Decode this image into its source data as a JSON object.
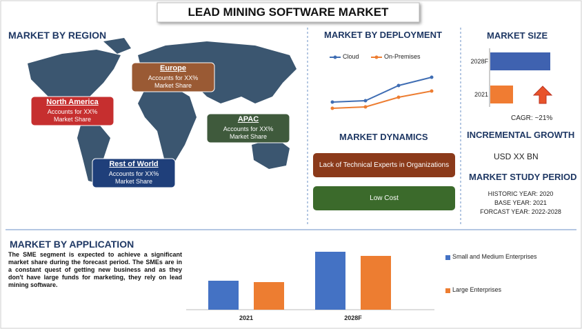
{
  "title": "LEAD MINING SOFTWARE MARKET",
  "region": {
    "heading": "MARKET BY REGION",
    "regions": [
      {
        "name": "North America",
        "lines": [
          "Accounts for XX%",
          "Market Share"
        ],
        "color": "#c62f2f"
      },
      {
        "name": "Europe",
        "lines": [
          "Accounts for XX%",
          "Market Share"
        ],
        "color": "#9a5a34"
      },
      {
        "name": "APAC",
        "lines": [
          "Accounts for XX%",
          "Market Share"
        ],
        "color": "#3f5a3c"
      },
      {
        "name": "Rest of World",
        "lines": [
          "Accounts for XX%",
          "Market Share"
        ],
        "color": "#1f3f7a"
      }
    ]
  },
  "deployment": {
    "heading": "MARKET BY DEPLOYMENT",
    "series": [
      {
        "name": "Cloud",
        "color": "#3f6db3",
        "values": [
          5.2,
          5.4,
          7.6,
          8.8
        ]
      },
      {
        "name": "On-Premises",
        "color": "#ed7d31",
        "values": [
          4.3,
          4.5,
          5.9,
          6.8
        ]
      }
    ]
  },
  "dynamics": {
    "heading": "MARKET DYNAMICS",
    "items": [
      {
        "text": "Lack of Technical Experts in Organizations",
        "color": "#8b3a1a"
      },
      {
        "text": "Low Cost",
        "color": "#3b6a2b"
      }
    ]
  },
  "size": {
    "heading": "MARKET SIZE",
    "bars": [
      {
        "label": "2028F",
        "value": 87,
        "color": "#3f62b0"
      },
      {
        "label": "2021",
        "value": 33,
        "color": "#f07c32"
      }
    ],
    "cagr": "CAGR: ~21%"
  },
  "incremental": {
    "heading": "INCREMENTAL GROWTH",
    "value": "USD XX BN"
  },
  "study": {
    "heading": "MARKET STUDY PERIOD",
    "lines": [
      "HISTORIC YEAR: 2020",
      "BASE YEAR: 2021",
      "FORCAST YEAR: 2022-2028"
    ]
  },
  "application": {
    "heading": "MARKET BY APPLICATION",
    "text": "The SME segment is expected to achieve a significant market share during the forecast period. The SMEs are in a constant quest of getting new business and as they don't have large funds for marketing, they rely on lead mining software.",
    "categories": [
      "2021",
      "2028F"
    ],
    "series": [
      {
        "name": "Small and Medium Enterprises",
        "color": "#4472c4",
        "values": [
          42,
          84
        ]
      },
      {
        "name": "Large Enterprises",
        "color": "#ed7d31",
        "values": [
          40,
          78
        ]
      }
    ]
  }
}
